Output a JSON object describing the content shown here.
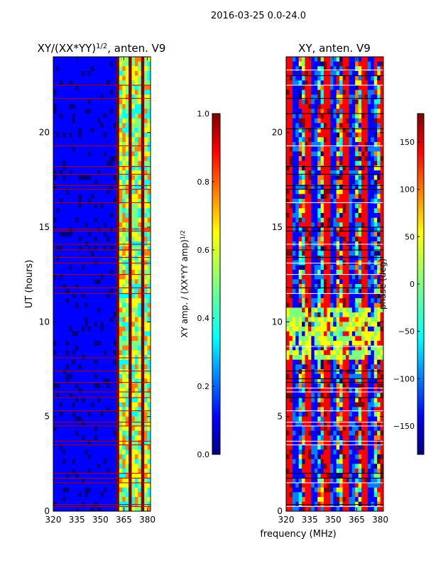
{
  "suptitle": "2016-03-25 0.0-24.0",
  "shared_xlabel": "frequency (MHz)",
  "colors": {
    "jet": [
      "#00007f",
      "#0000ff",
      "#007fff",
      "#00ffff",
      "#7fff7f",
      "#ffff00",
      "#ff7f00",
      "#ff0000",
      "#7f0000"
    ],
    "flag_line": "#b00000",
    "white_gap": "#ffffff"
  },
  "chart_data": [
    {
      "type": "heatmap",
      "title_main": "XY/(XX*YY)",
      "title_sup": "1/2",
      "title_tail": ", anten. V9",
      "xlabel": "",
      "ylabel": "UT (hours)",
      "xlim": [
        320,
        382
      ],
      "ylim": [
        0,
        24
      ],
      "x_ticks": [
        320,
        335,
        350,
        365,
        380
      ],
      "y_ticks": [
        0,
        5,
        10,
        15,
        20
      ],
      "colorbar": {
        "label_main": "XY amp. / (XX*YY amp)",
        "label_sup": "1/2",
        "range": [
          0.0,
          1.0
        ],
        "ticks": [
          "0.0",
          "0.2",
          "0.4",
          "0.6",
          "0.8",
          "1.0"
        ],
        "tick_values": [
          0.0,
          0.2,
          0.4,
          0.6,
          0.8,
          1.0
        ]
      },
      "flagged_hours": [
        0.25,
        0.35,
        1.5,
        1.75,
        2.0,
        3.5,
        3.7,
        4.5,
        4.7,
        5.3,
        6.0,
        6.3,
        6.8,
        7.4,
        8.1,
        11.5,
        11.8,
        12.5,
        13.1,
        13.4,
        13.8,
        14.1,
        14.8,
        14.9,
        16.3,
        17.0,
        17.2,
        17.8,
        18.2,
        19.3,
        21.8,
        22.5
      ]
    },
    {
      "type": "heatmap",
      "title_main": "XY, anten. V9",
      "xlabel": "frequency (MHz)",
      "ylabel": "",
      "xlim": [
        320,
        382
      ],
      "ylim": [
        0,
        24
      ],
      "x_ticks": [
        320,
        335,
        350,
        365,
        380
      ],
      "y_ticks": [
        0,
        5,
        10,
        15,
        20
      ],
      "colorbar": {
        "label_main": "phase (deg)",
        "range": [
          -180,
          180
        ],
        "ticks": [
          "150",
          "100",
          "50",
          "0",
          "−50",
          "−100",
          "−150"
        ],
        "tick_values": [
          150,
          100,
          50,
          0,
          -50,
          -100,
          -150
        ]
      },
      "flagged_hours": [
        0.25,
        0.35,
        1.5,
        1.75,
        2.0,
        3.5,
        3.7,
        4.5,
        4.7,
        5.3,
        6.0,
        6.3,
        6.5,
        6.8,
        7.0,
        7.4,
        8.7,
        11.5,
        11.8,
        12.5,
        13.1,
        13.4,
        13.8,
        14.1,
        14.8,
        15.0,
        16.3,
        17.0,
        17.2,
        17.8,
        18.2,
        19.3,
        20.2,
        21.0,
        21.8,
        22.5,
        23.0,
        23.3
      ]
    }
  ]
}
